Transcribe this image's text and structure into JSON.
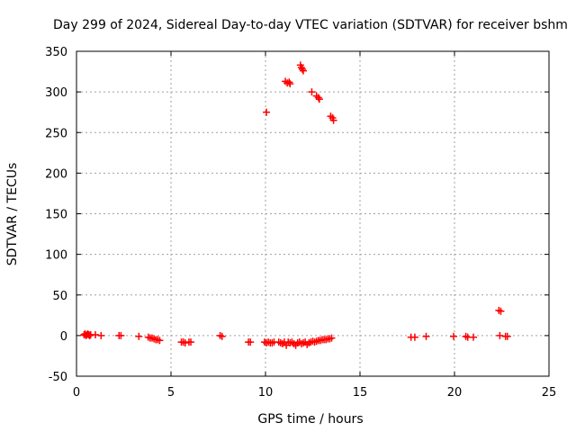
{
  "chart_data": {
    "type": "scatter",
    "title": "Day 299 of 2024, Sidereal Day-to-day VTEC variation (SDTVAR) for receiver bshm",
    "xlabel": "GPS time / hours",
    "ylabel": "SDTVAR / TECUs",
    "xlim": [
      0,
      25
    ],
    "ylim": [
      -50,
      350
    ],
    "xticks": [
      0,
      5,
      10,
      15,
      20,
      25
    ],
    "yticks": [
      -50,
      0,
      50,
      100,
      150,
      200,
      250,
      300,
      350
    ],
    "grid": true,
    "marker": "+",
    "color": "#ff0000",
    "series": [
      {
        "name": "SDTVAR",
        "points": [
          [
            0.4,
            1
          ],
          [
            0.45,
            2
          ],
          [
            0.5,
            0
          ],
          [
            0.55,
            1
          ],
          [
            0.6,
            2
          ],
          [
            0.65,
            1
          ],
          [
            0.7,
            0
          ],
          [
            0.75,
            1
          ],
          [
            1.0,
            1
          ],
          [
            1.3,
            0
          ],
          [
            2.25,
            0
          ],
          [
            2.35,
            0
          ],
          [
            3.3,
            -1
          ],
          [
            3.8,
            -2
          ],
          [
            3.9,
            -3
          ],
          [
            4.0,
            -3
          ],
          [
            4.1,
            -4
          ],
          [
            4.2,
            -5
          ],
          [
            4.3,
            -5
          ],
          [
            4.4,
            -6
          ],
          [
            5.55,
            -8
          ],
          [
            5.65,
            -8
          ],
          [
            5.75,
            -9
          ],
          [
            5.95,
            -8
          ],
          [
            6.05,
            -8
          ],
          [
            7.6,
            0
          ],
          [
            7.7,
            -1
          ],
          [
            9.1,
            -8
          ],
          [
            9.2,
            -8
          ],
          [
            9.95,
            -8
          ],
          [
            10.05,
            -9
          ],
          [
            10.15,
            -8
          ],
          [
            10.25,
            -9
          ],
          [
            10.35,
            -9
          ],
          [
            10.45,
            -8
          ],
          [
            10.7,
            -8
          ],
          [
            10.8,
            -9
          ],
          [
            10.9,
            -10
          ],
          [
            11.0,
            -8
          ],
          [
            11.1,
            -12
          ],
          [
            11.2,
            -8
          ],
          [
            11.3,
            -9
          ],
          [
            11.4,
            -8
          ],
          [
            11.5,
            -10
          ],
          [
            11.6,
            -12
          ],
          [
            11.7,
            -9
          ],
          [
            11.8,
            -8
          ],
          [
            11.9,
            -10
          ],
          [
            12.0,
            -9
          ],
          [
            12.1,
            -8
          ],
          [
            12.2,
            -11
          ],
          [
            12.3,
            -9
          ],
          [
            12.4,
            -8
          ],
          [
            12.5,
            -7
          ],
          [
            12.6,
            -8
          ],
          [
            12.7,
            -7
          ],
          [
            12.8,
            -6
          ],
          [
            12.9,
            -6
          ],
          [
            13.0,
            -5
          ],
          [
            13.1,
            -5
          ],
          [
            13.2,
            -5
          ],
          [
            13.3,
            -4
          ],
          [
            13.4,
            -4
          ],
          [
            13.5,
            -3
          ],
          [
            10.05,
            275
          ],
          [
            11.05,
            313
          ],
          [
            11.15,
            311
          ],
          [
            11.25,
            312
          ],
          [
            11.3,
            310
          ],
          [
            11.85,
            333
          ],
          [
            11.9,
            330
          ],
          [
            11.95,
            328
          ],
          [
            12.0,
            326
          ],
          [
            12.45,
            300
          ],
          [
            12.7,
            295
          ],
          [
            12.8,
            293
          ],
          [
            12.85,
            291
          ],
          [
            13.45,
            270
          ],
          [
            13.55,
            268
          ],
          [
            13.6,
            265
          ],
          [
            17.7,
            -2
          ],
          [
            17.9,
            -2
          ],
          [
            18.5,
            -1
          ],
          [
            19.95,
            -1
          ],
          [
            20.6,
            -1
          ],
          [
            20.7,
            -2
          ],
          [
            21.0,
            -2
          ],
          [
            22.35,
            31
          ],
          [
            22.45,
            30
          ],
          [
            22.4,
            0
          ],
          [
            22.7,
            -1
          ],
          [
            22.8,
            -1
          ]
        ]
      }
    ]
  }
}
